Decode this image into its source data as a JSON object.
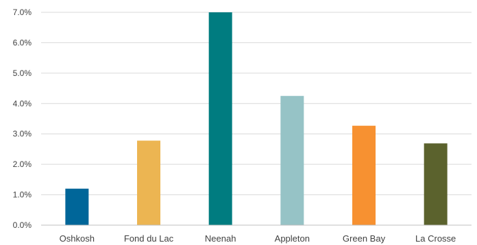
{
  "chart_data": {
    "type": "bar",
    "title": "",
    "xlabel": "",
    "ylabel": "",
    "categories": [
      "Oshkosh",
      "Fond du Lac",
      "Neenah",
      "Appleton",
      "Green Bay",
      "La Crosse"
    ],
    "values": [
      1.2,
      2.78,
      7.0,
      4.25,
      3.27,
      2.69
    ],
    "colors": [
      "#006699",
      "#ecb552",
      "#007c80",
      "#96c3c6",
      "#f79131",
      "#5b622d"
    ],
    "ylim": [
      0,
      7
    ],
    "yticks": [
      0,
      1,
      2,
      3,
      4,
      5,
      6,
      7
    ],
    "ytick_labels": [
      "0.0%",
      "1.0%",
      "2.0%",
      "3.0%",
      "4.0%",
      "5.0%",
      "6.0%",
      "7.0%"
    ],
    "grid": true,
    "legend": "none"
  }
}
